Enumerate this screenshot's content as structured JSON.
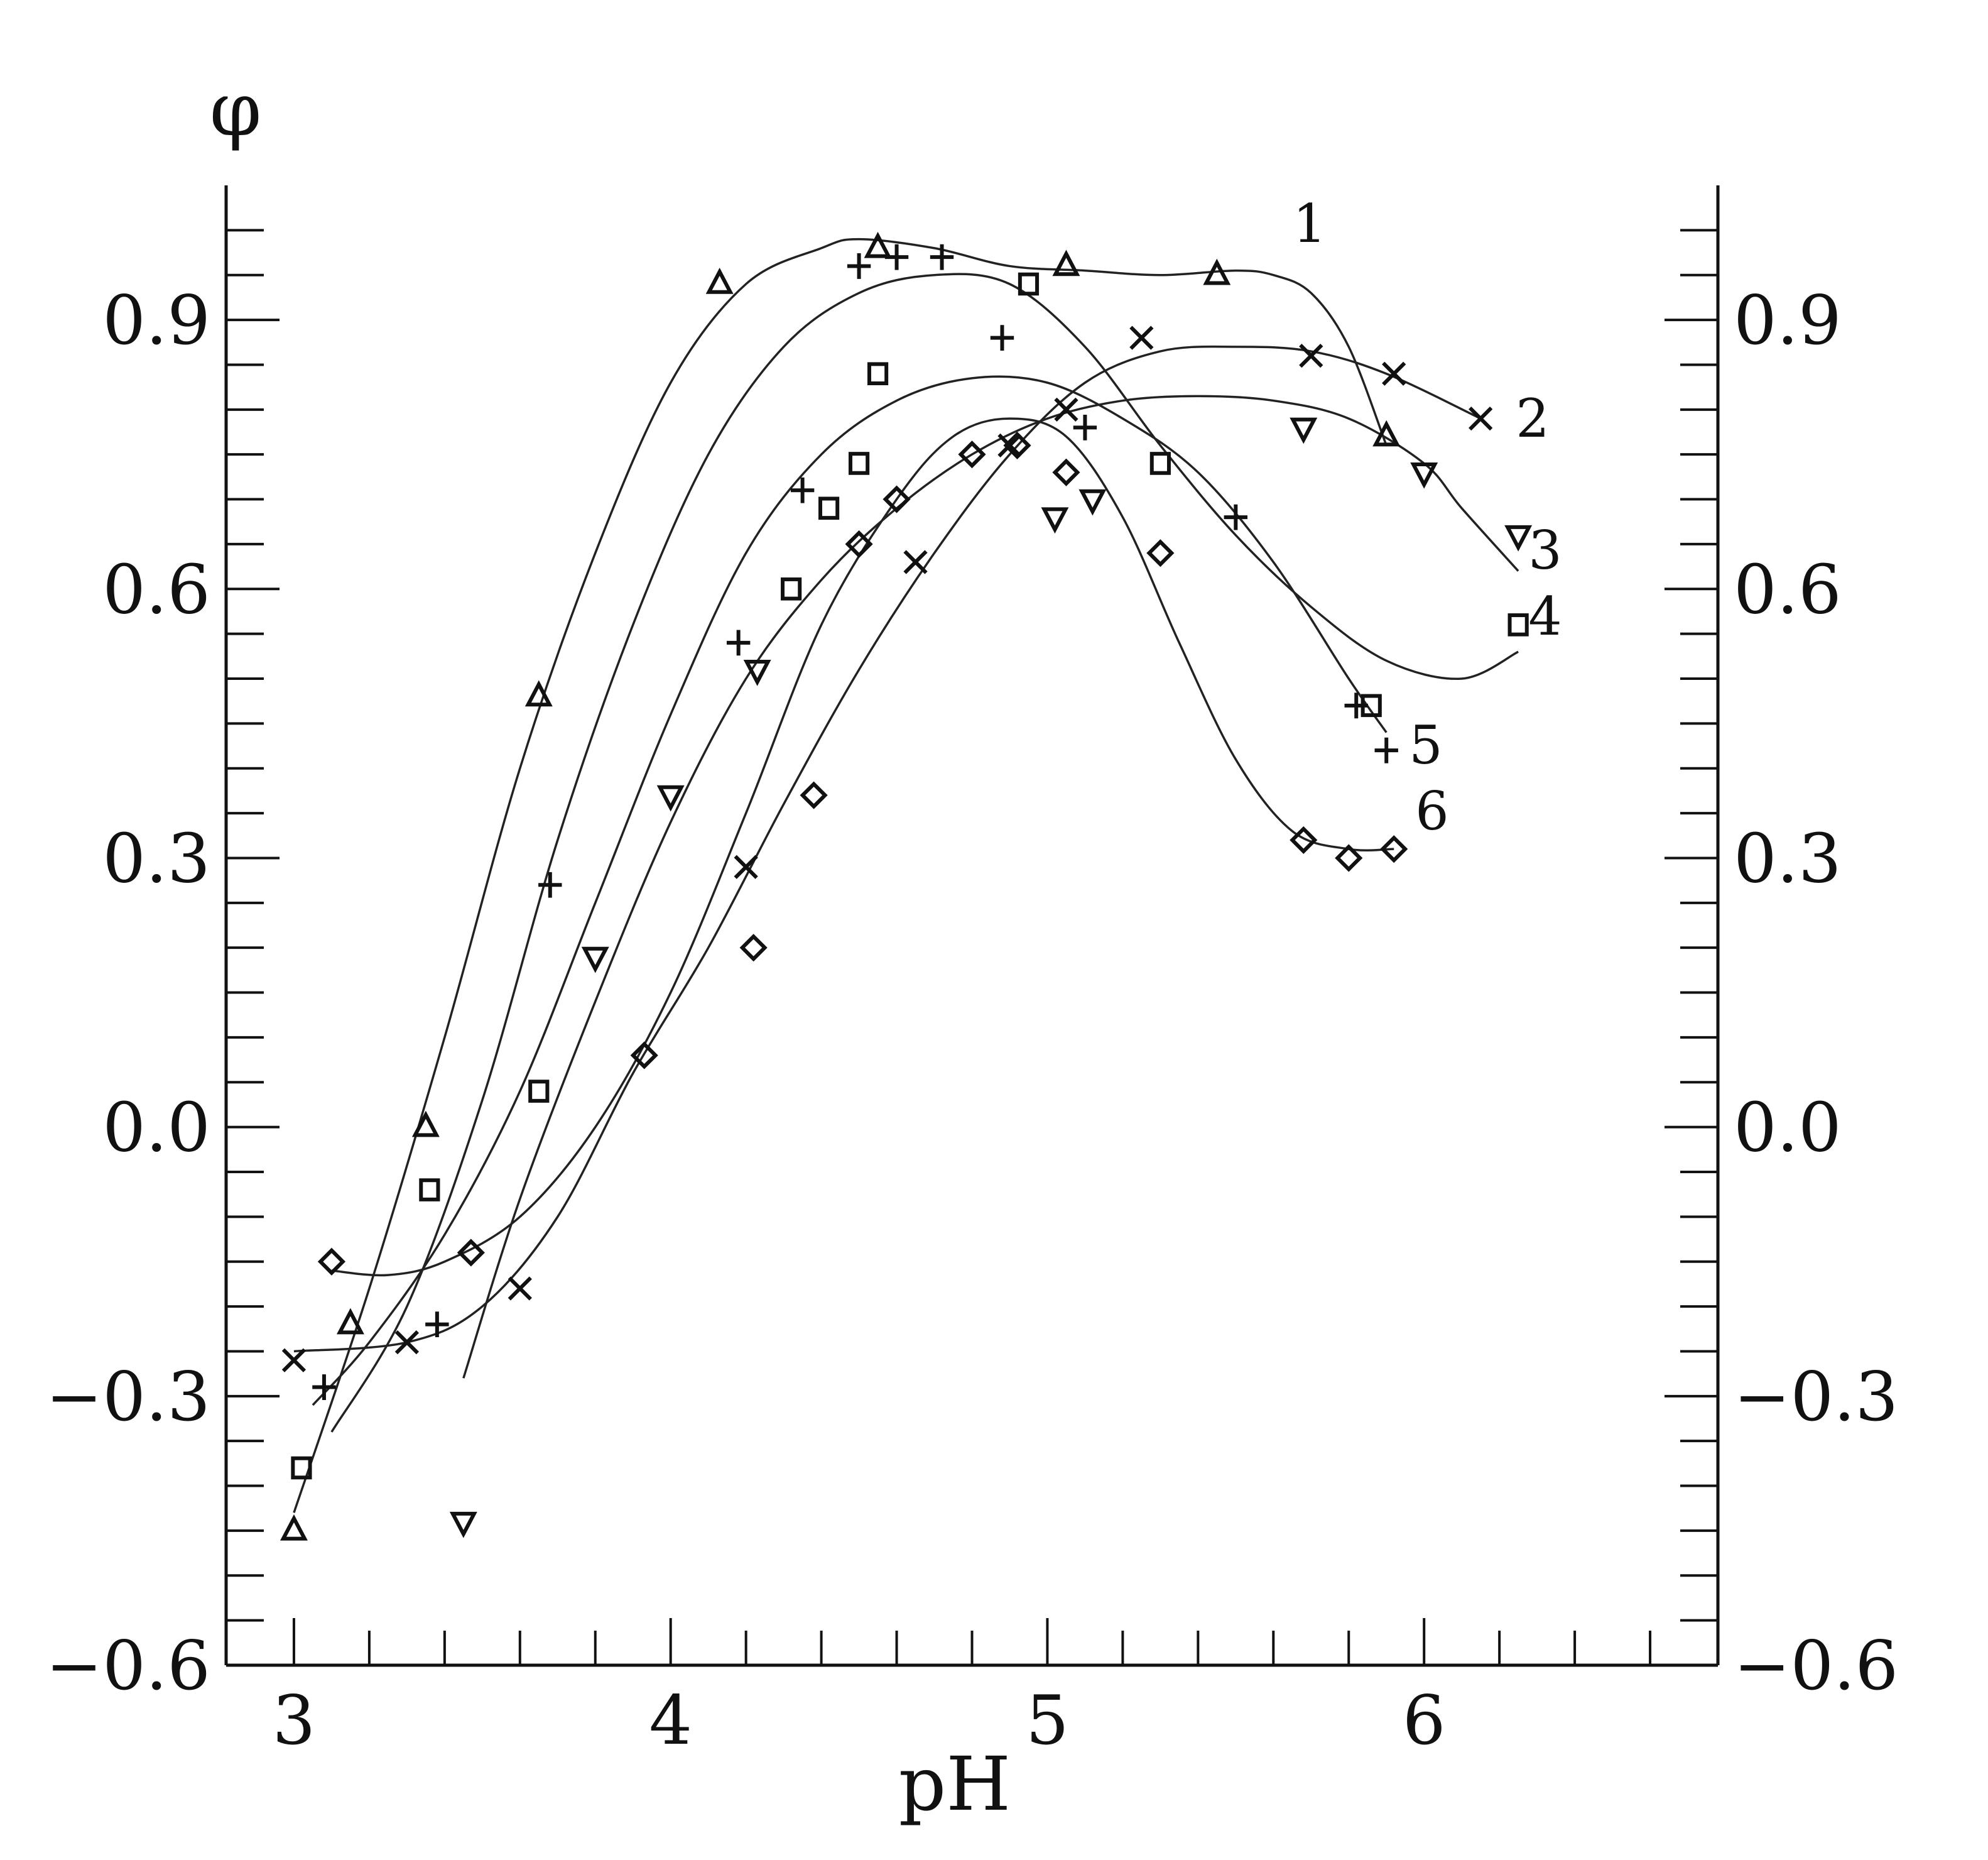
{
  "chart_data": {
    "type": "scatter",
    "title": "",
    "xlabel": "pH",
    "ylabel": "φ",
    "xlim": [
      2.82,
      6.78
    ],
    "ylim": [
      -0.6,
      1.05
    ],
    "x_ticks": [
      3,
      4,
      5,
      6
    ],
    "x_tick_labels": [
      "3",
      "4",
      "5",
      "6"
    ],
    "y_ticks": [
      -0.6,
      -0.3,
      0.0,
      0.3,
      0.6,
      0.9
    ],
    "y_tick_labels": [
      "−0.6",
      "−0.3",
      "0.0",
      "0.3",
      "0.6",
      "0.9"
    ],
    "right_axis_mirrors_left": true,
    "grid": false,
    "legend": "none",
    "series": [
      {
        "name": "1",
        "marker": "triangle",
        "points": [
          [
            3.0,
            -0.45
          ],
          [
            3.15,
            -0.22
          ],
          [
            3.35,
            0.0
          ],
          [
            3.65,
            0.48
          ],
          [
            4.13,
            0.94
          ],
          [
            4.55,
            0.98
          ],
          [
            5.05,
            0.96
          ],
          [
            5.45,
            0.95
          ],
          [
            5.9,
            0.77
          ]
        ],
        "curve": [
          [
            3.0,
            -0.43
          ],
          [
            3.2,
            -0.18
          ],
          [
            3.4,
            0.1
          ],
          [
            3.6,
            0.4
          ],
          [
            3.8,
            0.64
          ],
          [
            4.0,
            0.83
          ],
          [
            4.2,
            0.94
          ],
          [
            4.4,
            0.98
          ],
          [
            4.5,
            0.99
          ],
          [
            4.7,
            0.98
          ],
          [
            4.9,
            0.96
          ],
          [
            5.1,
            0.955
          ],
          [
            5.3,
            0.95
          ],
          [
            5.5,
            0.955
          ],
          [
            5.6,
            0.95
          ],
          [
            5.7,
            0.93
          ],
          [
            5.8,
            0.87
          ],
          [
            5.9,
            0.76
          ]
        ]
      },
      {
        "name": "2",
        "marker": "x",
        "points": [
          [
            3.0,
            -0.26
          ],
          [
            3.3,
            -0.24
          ],
          [
            3.6,
            -0.18
          ],
          [
            4.2,
            0.29
          ],
          [
            4.65,
            0.63
          ],
          [
            4.9,
            0.76
          ],
          [
            5.05,
            0.8
          ],
          [
            5.25,
            0.88
          ],
          [
            5.7,
            0.86
          ],
          [
            5.92,
            0.84
          ],
          [
            6.15,
            0.79
          ]
        ],
        "curve": [
          [
            3.0,
            -0.25
          ],
          [
            3.3,
            -0.24
          ],
          [
            3.5,
            -0.2
          ],
          [
            3.7,
            -0.1
          ],
          [
            3.9,
            0.06
          ],
          [
            4.1,
            0.2
          ],
          [
            4.3,
            0.36
          ],
          [
            4.5,
            0.51
          ],
          [
            4.7,
            0.64
          ],
          [
            4.9,
            0.75
          ],
          [
            5.1,
            0.83
          ],
          [
            5.3,
            0.865
          ],
          [
            5.5,
            0.87
          ],
          [
            5.7,
            0.865
          ],
          [
            5.9,
            0.84
          ],
          [
            6.15,
            0.79
          ]
        ]
      },
      {
        "name": "3",
        "marker": "triangle-down",
        "points": [
          [
            3.45,
            -0.44
          ],
          [
            3.8,
            0.19
          ],
          [
            4.0,
            0.37
          ],
          [
            4.23,
            0.51
          ],
          [
            5.02,
            0.68
          ],
          [
            5.12,
            0.7
          ],
          [
            5.68,
            0.78
          ],
          [
            6.0,
            0.73
          ],
          [
            6.25,
            0.66
          ]
        ],
        "curve": [
          [
            3.45,
            -0.28
          ],
          [
            3.6,
            -0.08
          ],
          [
            3.8,
            0.14
          ],
          [
            4.0,
            0.34
          ],
          [
            4.2,
            0.5
          ],
          [
            4.4,
            0.61
          ],
          [
            4.6,
            0.69
          ],
          [
            4.8,
            0.75
          ],
          [
            5.0,
            0.79
          ],
          [
            5.2,
            0.81
          ],
          [
            5.4,
            0.815
          ],
          [
            5.6,
            0.81
          ],
          [
            5.8,
            0.79
          ],
          [
            6.0,
            0.74
          ],
          [
            6.1,
            0.69
          ],
          [
            6.25,
            0.62
          ]
        ]
      },
      {
        "name": "4",
        "marker": "square",
        "points": [
          [
            3.02,
            -0.38
          ],
          [
            3.36,
            -0.07
          ],
          [
            3.65,
            0.04
          ],
          [
            4.32,
            0.6
          ],
          [
            4.42,
            0.69
          ],
          [
            4.5,
            0.74
          ],
          [
            4.55,
            0.84
          ],
          [
            4.95,
            0.94
          ],
          [
            5.3,
            0.74
          ],
          [
            5.86,
            0.47
          ],
          [
            6.25,
            0.56
          ]
        ],
        "curve": [
          [
            3.1,
            -0.34
          ],
          [
            3.3,
            -0.2
          ],
          [
            3.5,
            0.03
          ],
          [
            3.7,
            0.32
          ],
          [
            3.9,
            0.56
          ],
          [
            4.1,
            0.75
          ],
          [
            4.3,
            0.87
          ],
          [
            4.5,
            0.93
          ],
          [
            4.7,
            0.95
          ],
          [
            4.9,
            0.94
          ],
          [
            5.1,
            0.87
          ],
          [
            5.3,
            0.76
          ],
          [
            5.5,
            0.66
          ],
          [
            5.7,
            0.58
          ],
          [
            5.9,
            0.52
          ],
          [
            6.1,
            0.5
          ],
          [
            6.25,
            0.53
          ]
        ]
      },
      {
        "name": "5",
        "marker": "plus",
        "points": [
          [
            3.08,
            -0.29
          ],
          [
            3.38,
            -0.22
          ],
          [
            3.68,
            0.27
          ],
          [
            4.18,
            0.54
          ],
          [
            4.35,
            0.71
          ],
          [
            4.5,
            0.96
          ],
          [
            4.6,
            0.97
          ],
          [
            4.72,
            0.97
          ],
          [
            4.88,
            0.88
          ],
          [
            5.1,
            0.78
          ],
          [
            5.5,
            0.68
          ],
          [
            5.82,
            0.47
          ],
          [
            5.9,
            0.42
          ]
        ],
        "curve": [
          [
            3.05,
            -0.31
          ],
          [
            3.2,
            -0.24
          ],
          [
            3.4,
            -0.12
          ],
          [
            3.6,
            0.04
          ],
          [
            3.8,
            0.25
          ],
          [
            4.0,
            0.46
          ],
          [
            4.2,
            0.64
          ],
          [
            4.4,
            0.75
          ],
          [
            4.6,
            0.81
          ],
          [
            4.8,
            0.835
          ],
          [
            5.0,
            0.83
          ],
          [
            5.2,
            0.79
          ],
          [
            5.4,
            0.73
          ],
          [
            5.6,
            0.63
          ],
          [
            5.8,
            0.5
          ],
          [
            5.9,
            0.44
          ]
        ]
      },
      {
        "name": "6",
        "marker": "diamond",
        "points": [
          [
            3.1,
            -0.15
          ],
          [
            3.47,
            -0.14
          ],
          [
            3.93,
            0.08
          ],
          [
            4.22,
            0.2
          ],
          [
            4.38,
            0.37
          ],
          [
            4.5,
            0.65
          ],
          [
            4.6,
            0.7
          ],
          [
            4.8,
            0.75
          ],
          [
            4.92,
            0.76
          ],
          [
            5.05,
            0.73
          ],
          [
            5.3,
            0.64
          ],
          [
            5.68,
            0.32
          ],
          [
            5.8,
            0.3
          ],
          [
            5.92,
            0.31
          ]
        ],
        "curve": [
          [
            3.1,
            -0.16
          ],
          [
            3.25,
            -0.165
          ],
          [
            3.4,
            -0.15
          ],
          [
            3.6,
            -0.1
          ],
          [
            3.8,
            0.0
          ],
          [
            4.0,
            0.15
          ],
          [
            4.2,
            0.35
          ],
          [
            4.4,
            0.56
          ],
          [
            4.6,
            0.7
          ],
          [
            4.75,
            0.77
          ],
          [
            4.9,
            0.79
          ],
          [
            5.05,
            0.77
          ],
          [
            5.2,
            0.68
          ],
          [
            5.35,
            0.54
          ],
          [
            5.5,
            0.41
          ],
          [
            5.65,
            0.33
          ],
          [
            5.8,
            0.31
          ],
          [
            5.92,
            0.31
          ]
        ]
      }
    ]
  },
  "axes": {
    "y_axis_symbol": "φ",
    "x_axis_title": "pH"
  }
}
